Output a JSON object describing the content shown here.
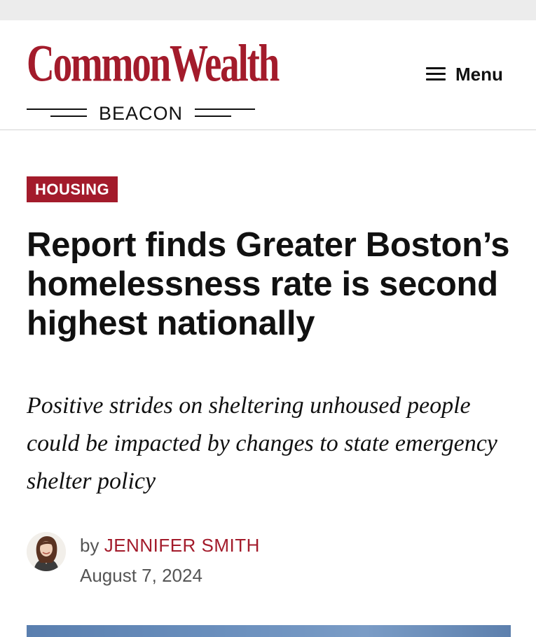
{
  "header": {
    "logo": {
      "main": "CommonWealth",
      "sub": "BEACON"
    },
    "menu_label": "Menu",
    "menu_icon": "hamburger-icon"
  },
  "article": {
    "category": "HOUSING",
    "headline": "Report finds Greater Boston’s homelessness rate is second highest nationally",
    "subheadline": "Positive strides on sheltering unhoused people could be impacted by changes to state emergency shelter policy",
    "byline_prefix": "by",
    "author": "JENNIFER SMITH",
    "date": "August 7, 2024"
  },
  "colors": {
    "brand": "#a31b2b",
    "text": "#111111",
    "muted": "#555555"
  }
}
